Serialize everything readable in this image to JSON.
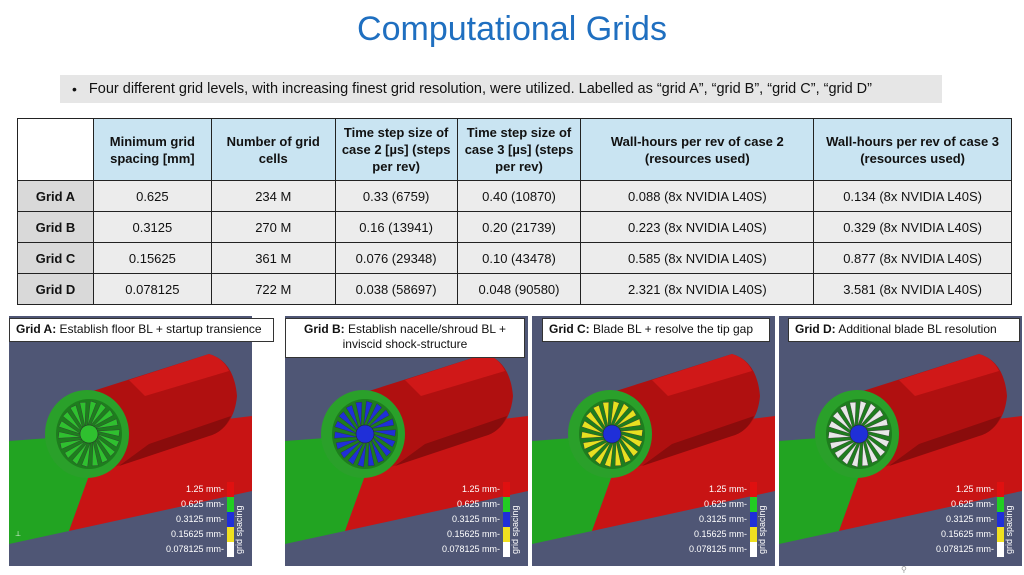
{
  "title": "Computational Grids",
  "bullet": {
    "symbol": "•",
    "text": "Four different grid levels, with increasing finest grid resolution, were utilized. Labelled as “grid A”, “grid B”, “grid C”, “grid D”"
  },
  "table": {
    "headers": [
      "",
      "Minimum grid spacing [mm]",
      "Number of grid cells",
      "Time step size of case 2 [µs] (steps per rev)",
      "Time step size of case 3 [µs] (steps per rev)",
      "Wall-hours per rev of case 2 (resources used)",
      "Wall-hours per rev of case 3 (resources used)"
    ],
    "rows": [
      [
        "Grid A",
        "0.625",
        "234 M",
        "0.33 (6759)",
        "0.40 (10870)",
        "0.088 (8x NVIDIA L40S)",
        "0.134 (8x NVIDIA L40S)"
      ],
      [
        "Grid B",
        "0.3125",
        "270 M",
        "0.16 (13941)",
        "0.20 (21739)",
        "0.223 (8x NVIDIA L40S)",
        "0.329 (8x NVIDIA L40S)"
      ],
      [
        "Grid C",
        "0.15625",
        "361 M",
        "0.076 (29348)",
        "0.10 (43478)",
        "0.585 (8x NVIDIA L40S)",
        "0.877 (8x NVIDIA L40S)"
      ],
      [
        "Grid D",
        "0.078125",
        "722 M",
        "0.038 (58697)",
        "0.048 (90580)",
        "2.321 (8x NVIDIA L40S)",
        "3.581 (8x NVIDIA L40S)"
      ]
    ]
  },
  "panels": [
    {
      "label": "Grid A:",
      "caption": " Establish floor BL + startup transience",
      "fan_color": "#2fc02f",
      "hub_color": "#2fc02f"
    },
    {
      "label": "Grid B:",
      "caption": " Establish nacelle/shroud BL + inviscid shock-structure",
      "fan_color": "#1f2fd8",
      "hub_color": "#1f2fd8"
    },
    {
      "label": "Grid C:",
      "caption": " Blade BL + resolve the tip gap",
      "fan_color": "#e8e020",
      "hub_color": "#1f2fd8"
    },
    {
      "label": "Grid D:",
      "caption": " Additional blade BL resolution",
      "fan_color": "#e8e8e8",
      "hub_color": "#1f2fd8"
    }
  ],
  "legend": {
    "title": "grid spacing",
    "items": [
      {
        "label": "1.25 mm-",
        "color": "#e01010"
      },
      {
        "label": "0.625 mm-",
        "color": "#22cc22"
      },
      {
        "label": "0.3125 mm-",
        "color": "#1f2fd8"
      },
      {
        "label": "0.15625 mm-",
        "color": "#f0e020"
      },
      {
        "label": "0.078125 mm-",
        "color": "#ffffff"
      }
    ]
  },
  "colors": {
    "title": "#1f6fc0",
    "header_fill": "#c9e4f2",
    "viewport_bg": "#4f5675",
    "floor_green": "#22a422",
    "floor_red": "#c81414",
    "nacelle_red": "#b01010"
  }
}
